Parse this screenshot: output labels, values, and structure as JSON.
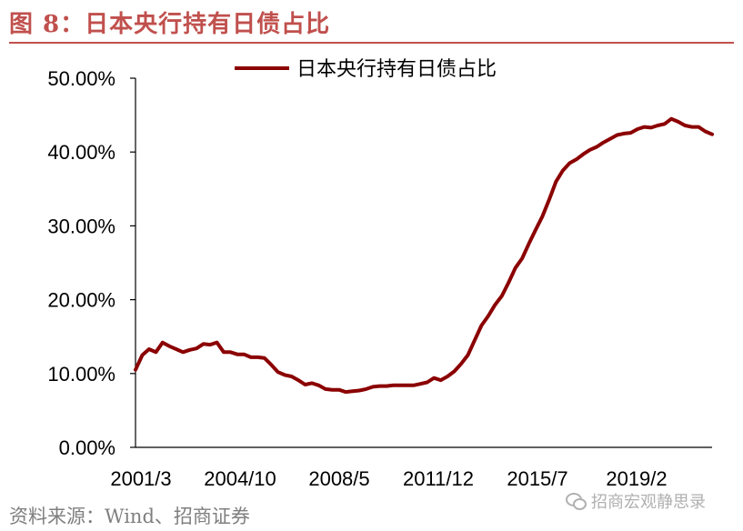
{
  "figure": {
    "title": "图 8：日本央行持有日债占比",
    "source": "资料来源：Wind、招商证券",
    "watermark": "招商宏观静思录"
  },
  "colors": {
    "line": "#8b0000",
    "accent": "#c0504d"
  },
  "chart_data": {
    "type": "line",
    "title": "",
    "xlabel": "",
    "ylabel": "",
    "legend_position": "top-center",
    "grid": false,
    "ylim": [
      0,
      50
    ],
    "y_ticks": [
      "0.00%",
      "10.00%",
      "20.00%",
      "30.00%",
      "40.00%",
      "50.00%"
    ],
    "x_ticks": [
      "2001/3",
      "2004/10",
      "2008/5",
      "2011/12",
      "2015/7",
      "2019/2"
    ],
    "series": [
      {
        "name": "日本央行持有日债占比",
        "values": [
          10.5,
          12.5,
          13.3,
          12.9,
          14.2,
          13.7,
          13.3,
          12.9,
          13.2,
          13.4,
          14.0,
          13.9,
          14.2,
          12.9,
          12.9,
          12.6,
          12.6,
          12.2,
          12.2,
          12.1,
          11.2,
          10.2,
          9.8,
          9.6,
          9.1,
          8.5,
          8.7,
          8.4,
          7.9,
          7.8,
          7.8,
          7.5,
          7.6,
          7.7,
          7.9,
          8.2,
          8.3,
          8.3,
          8.4,
          8.4,
          8.4,
          8.4,
          8.6,
          8.8,
          9.4,
          9.1,
          9.6,
          10.3,
          11.3,
          12.5,
          14.5,
          16.5,
          17.8,
          19.3,
          20.5,
          22.3,
          24.3,
          25.6,
          27.6,
          29.5,
          31.3,
          33.6,
          36.0,
          37.5,
          38.5,
          39.0,
          39.7,
          40.3,
          40.7,
          41.3,
          41.8,
          42.3,
          42.5,
          42.6,
          43.1,
          43.4,
          43.3,
          43.6,
          43.8,
          44.5,
          44.1,
          43.6,
          43.4,
          43.4,
          42.8,
          42.4
        ]
      }
    ]
  }
}
